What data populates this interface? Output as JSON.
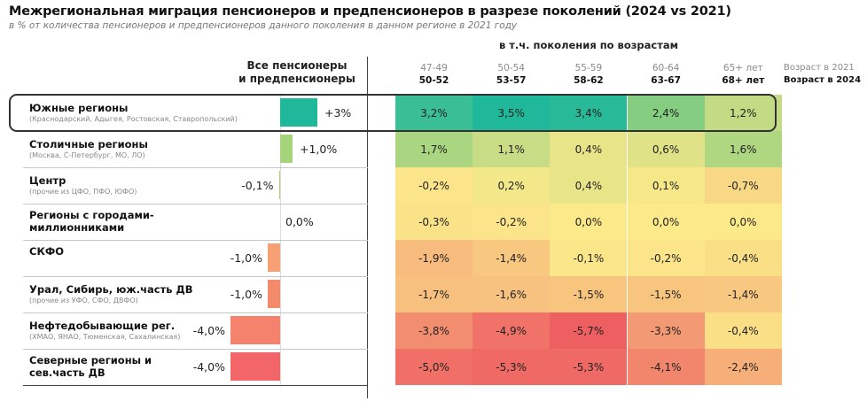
{
  "title": "Межрегиональная миграция пенсионеров и предпенсионеров в разрезе поколений (2024 vs 2021)",
  "subtitle": "в % от количества пенсионеров и предпенсионеров данного поколения в данном регионе в 2021 году",
  "chart_data": {
    "type": "table",
    "all_column_header": [
      "Все пенсионеры",
      "и предпенсионеры"
    ],
    "generations_header": "в т.ч. поколения по возрастам",
    "legend": {
      "age_2021": "Возраст в 2021",
      "age_2024": "Возраст в 2024"
    },
    "columns": [
      {
        "age_2021": "47-49",
        "age_2024": "50-52"
      },
      {
        "age_2021": "50-54",
        "age_2024": "53-57"
      },
      {
        "age_2021": "55-59",
        "age_2024": "58-62"
      },
      {
        "age_2021": "60-64",
        "age_2024": "63-67"
      },
      {
        "age_2021": "65+ лет",
        "age_2024": "68+ лет"
      }
    ],
    "rows": [
      {
        "name": "Южные регионы",
        "sub": "(Краснодарский, Адыгея, Ростовская, Ставропольский)",
        "all": 3.0,
        "all_label": "+3%",
        "bar_color": "#1fb89a",
        "values": [
          3.2,
          3.5,
          3.4,
          2.4,
          1.2
        ],
        "labels": [
          "3,2%",
          "3,5%",
          "3,4%",
          "2,4%",
          "1,2%"
        ],
        "highlighted": true
      },
      {
        "name": "Столичные регионы",
        "sub": "(Москва, С-Петербург, МО, ЛО)",
        "all": 1.0,
        "all_label": "+1,0%",
        "bar_color": "#a6d47a",
        "values": [
          1.7,
          1.1,
          0.4,
          0.6,
          1.6
        ],
        "labels": [
          "1,7%",
          "1,1%",
          "0,4%",
          "0,6%",
          "1,6%"
        ]
      },
      {
        "name": "Центр",
        "sub": "(прочие из ЦФО, ПФО, ЮФО)",
        "all": -0.1,
        "all_label": "-0,1%",
        "bar_color": "#a6d47a",
        "values": [
          -0.2,
          0.2,
          0.4,
          0.1,
          -0.7
        ],
        "labels": [
          "-0,2%",
          "0,2%",
          "0,4%",
          "0,1%",
          "-0,7%"
        ]
      },
      {
        "name": "Регионы с городами-миллионниками",
        "sub": "",
        "all": 0.0,
        "all_label": "0,0%",
        "bar_color": "#cccccc",
        "values": [
          -0.3,
          -0.2,
          0.0,
          0.0,
          0.0
        ],
        "labels": [
          "-0,3%",
          "-0,2%",
          "0,0%",
          "0,0%",
          "0,0%"
        ]
      },
      {
        "name": "СКФО",
        "sub": "",
        "all": -1.0,
        "all_label": "-1,0%",
        "bar_color": "#f7a074",
        "values": [
          -1.9,
          -1.4,
          -0.1,
          -0.2,
          -0.4
        ],
        "labels": [
          "-1,9%",
          "-1,4%",
          "-0,1%",
          "-0,2%",
          "-0,4%"
        ]
      },
      {
        "name": "Урал, Сибирь, юж.часть ДВ",
        "sub": "(прочие из УФО, СФО, ДВФО)",
        "all": -1.0,
        "all_label": "-1,0%",
        "bar_color": "#f48a6c",
        "values": [
          -1.7,
          -1.6,
          -1.5,
          -1.5,
          -1.4
        ],
        "labels": [
          "-1,7%",
          "-1,6%",
          "-1,5%",
          "-1,5%",
          "-1,4%"
        ]
      },
      {
        "name": "Нефтедобывающие рег.",
        "sub": "(ХМАО, ЯНАО, Тюменская, Сахалинская)",
        "all": -4.0,
        "all_label": "-4,0%",
        "bar_color": "#f4826c",
        "values": [
          -3.8,
          -4.9,
          -5.7,
          -3.3,
          -0.4
        ],
        "labels": [
          "-3,8%",
          "-4,9%",
          "-5,7%",
          "-3,3%",
          "-0,4%"
        ]
      },
      {
        "name": "Северные регионы и сев.часть ДВ",
        "sub": "",
        "all": -4.0,
        "all_label": "-4,0%",
        "bar_color": "#f2666a",
        "values": [
          -5.0,
          -5.3,
          -5.3,
          -4.1,
          -2.4
        ],
        "labels": [
          "-5,0%",
          "-5,3%",
          "-5,3%",
          "-4,1%",
          "-2,4%"
        ]
      }
    ],
    "color_scale": {
      "min": -5.7,
      "mid": 0,
      "max": 3.5,
      "min_color": "#ee5f62",
      "mid_color": "#fbe98a",
      "green_color": "#8fcf7e",
      "max_color": "#1fb89a"
    }
  }
}
